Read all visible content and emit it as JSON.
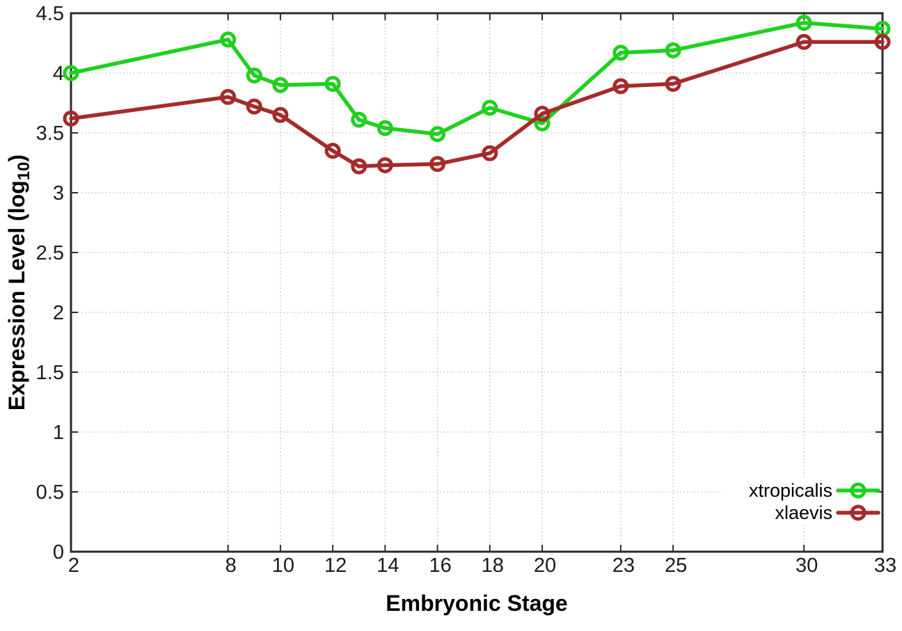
{
  "chart_data": {
    "type": "line",
    "title": "",
    "xlabel": "Embryonic Stage",
    "ylabel": "Expression Level (log10)",
    "ylabel_prefix": "Expression Level (log",
    "ylabel_sub": "10",
    "ylabel_suffix": ")",
    "x": [
      2,
      8,
      9,
      10,
      12,
      13,
      14,
      16,
      18,
      20,
      23,
      25,
      30,
      33
    ],
    "xticks": [
      2,
      8,
      10,
      12,
      14,
      16,
      18,
      20,
      23,
      25,
      30,
      33
    ],
    "yticks": [
      0,
      0.5,
      1,
      1.5,
      2,
      2.5,
      3,
      3.5,
      4,
      4.5
    ],
    "xlim": [
      2,
      33
    ],
    "ylim": [
      0,
      4.5
    ],
    "grid": true,
    "legend_position": "bottom-right",
    "series": [
      {
        "name": "xtropicalis",
        "color": "#20d020",
        "values": [
          4.0,
          4.28,
          3.98,
          3.9,
          3.91,
          3.61,
          3.54,
          3.49,
          3.71,
          3.58,
          4.17,
          4.19,
          4.42,
          4.37
        ]
      },
      {
        "name": "xlaevis",
        "color": "#a52a2a",
        "values": [
          3.62,
          3.8,
          3.72,
          3.65,
          3.35,
          3.22,
          3.23,
          3.24,
          3.33,
          3.66,
          3.89,
          3.91,
          4.26,
          4.26
        ]
      }
    ],
    "colors": {
      "grid": "#b8b8b8",
      "border": "#2b2b2b",
      "tick_text": "#1a1a1a",
      "background": "#ffffff"
    }
  }
}
